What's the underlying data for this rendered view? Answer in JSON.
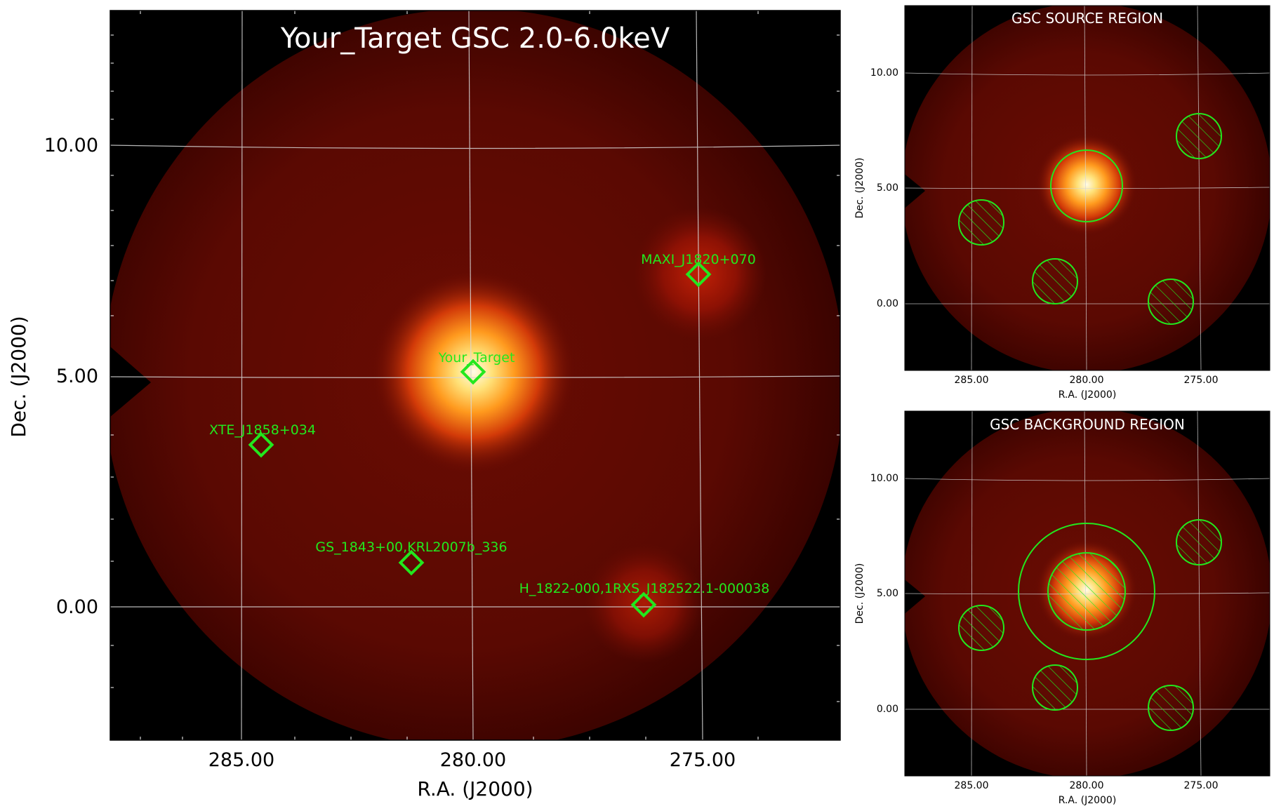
{
  "main": {
    "title": "Your_Target GSC 2.0-6.0keV",
    "xlabel": "R.A. (J2000)",
    "ylabel": "Dec. (J2000)",
    "xticks": [
      "285.00",
      "280.00",
      "275.00"
    ],
    "yticks": [
      "10.00",
      "5.00",
      "0.00"
    ],
    "sources": [
      {
        "name": "Your_Target",
        "ra": 279.9,
        "dec": 5.05
      },
      {
        "name": "MAXI_J1820+070",
        "ra": 275.1,
        "dec": 7.2
      },
      {
        "name": "XTE_J1858+034",
        "ra": 284.6,
        "dec": 3.5
      },
      {
        "name": "GS_1843+00,KRL2007b_336",
        "ra": 281.3,
        "dec": 0.95
      },
      {
        "name": "H_1822-000,1RXS_J182522.1-000038",
        "ra": 276.3,
        "dec": 0.05
      }
    ]
  },
  "source_panel": {
    "title": "GSC SOURCE REGION",
    "xlabel": "R.A. (J2000)",
    "ylabel": "Dec. (J2000)",
    "xticks": [
      "285.00",
      "280.00",
      "275.00"
    ],
    "yticks": [
      "10.00",
      "5.00",
      "0.00"
    ]
  },
  "background_panel": {
    "title": "GSC BACKGROUND REGION",
    "xlabel": "R.A. (J2000)",
    "ylabel": "Dec. (J2000)",
    "xticks": [
      "285.00",
      "280.00",
      "275.00"
    ],
    "yticks": [
      "10.00",
      "5.00",
      "0.00"
    ]
  },
  "colors": {
    "marker": "#22e81e",
    "grid": "#d8d8d8",
    "map_dark": "#2e0000",
    "map_mid": "#6e0f05",
    "source_core": "#fffbe8"
  }
}
